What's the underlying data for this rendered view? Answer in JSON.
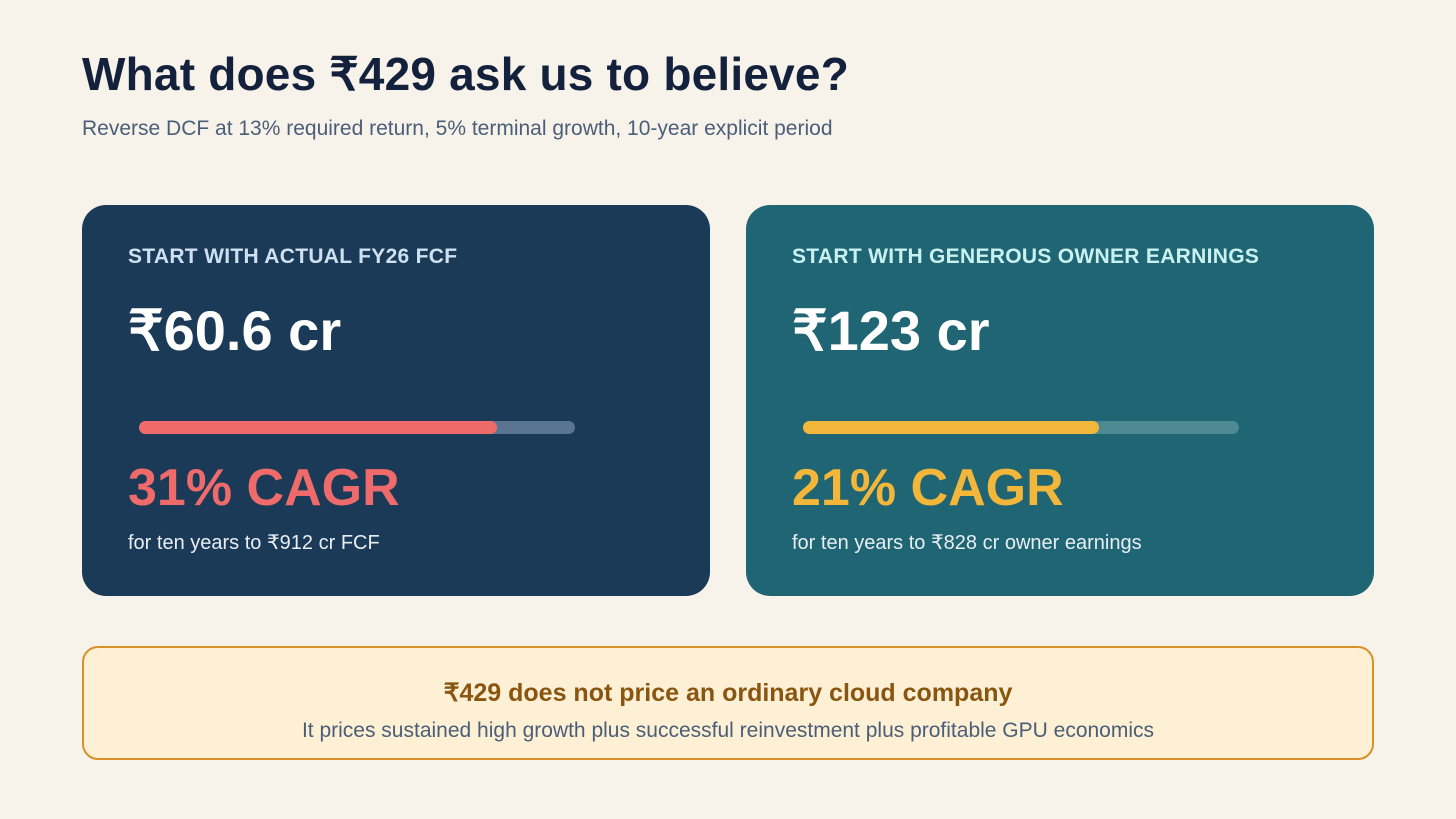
{
  "header": {
    "title": "What does ₹429 ask us to believe?",
    "subtitle": "Reverse DCF at 13% required return, 5% terminal growth, 10-year explicit period"
  },
  "cards": [
    {
      "label": "START WITH ACTUAL FY26 FCF",
      "value": "₹60.6 cr",
      "progress_fraction": 0.82,
      "cagr": "31% CAGR",
      "note": "for ten years to ₹912 cr FCF",
      "accent_color": "#ef6b6b"
    },
    {
      "label": "START WITH GENEROUS OWNER EARNINGS",
      "value": "₹123 cr",
      "progress_fraction": 0.68,
      "cagr": "21% CAGR",
      "note": "for ten years to ₹828 cr owner earnings",
      "accent_color": "#f2b73a"
    }
  ],
  "callout": {
    "title": "₹429 does not price an ordinary cloud company",
    "text": "It prices sustained high growth plus successful reinvestment plus profitable GPU economics"
  },
  "colors": {
    "background": "#f7f3ea",
    "title": "#14213d",
    "card_left": "#1b3a57",
    "card_right": "#1f6573",
    "callout_border": "#d8912a",
    "callout_background": "#fdf0d4"
  }
}
